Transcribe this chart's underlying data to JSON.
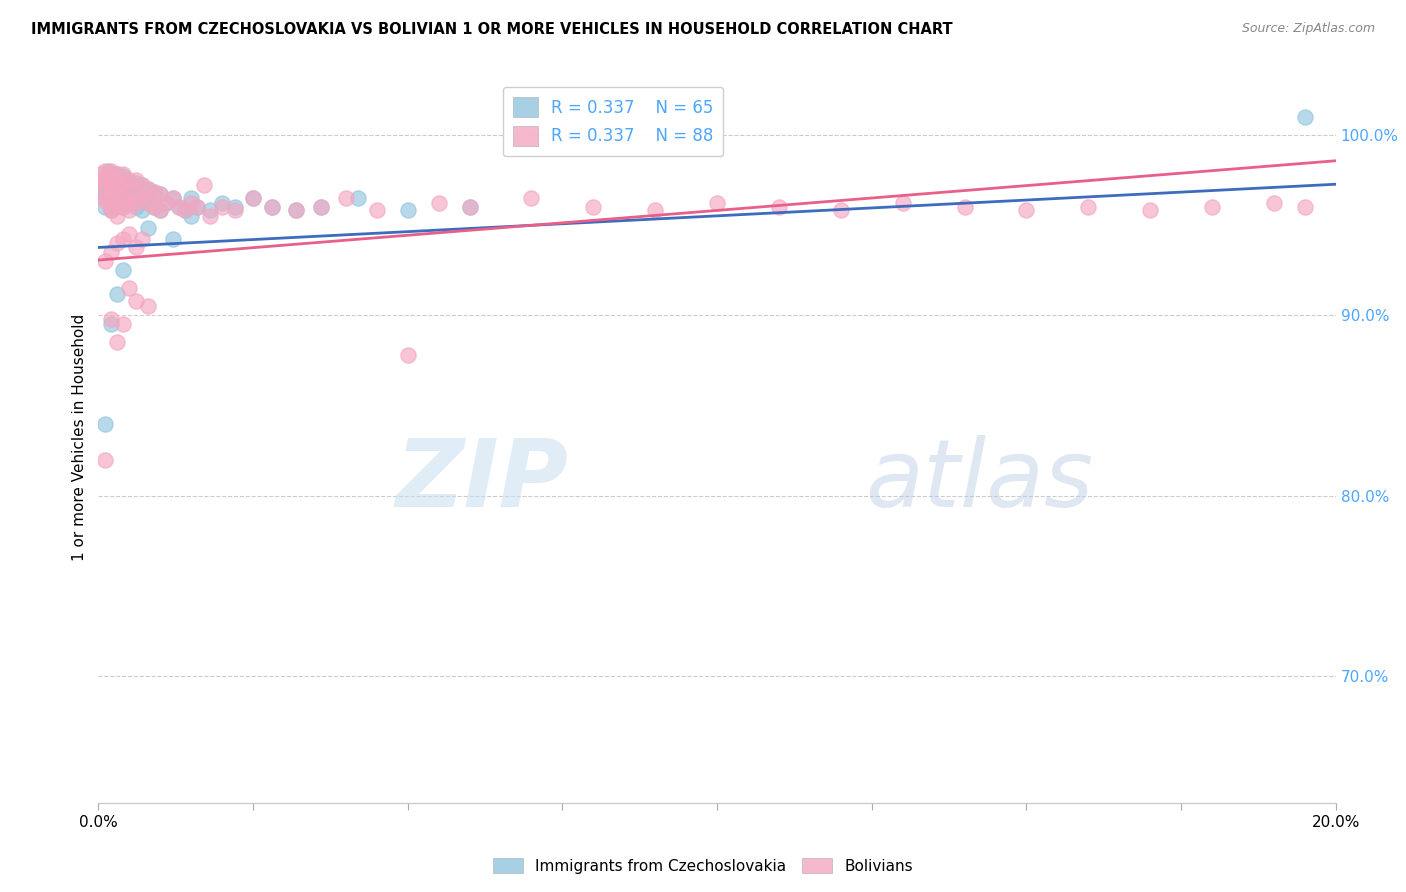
{
  "title": "IMMIGRANTS FROM CZECHOSLOVAKIA VS BOLIVIAN 1 OR MORE VEHICLES IN HOUSEHOLD CORRELATION CHART",
  "source": "Source: ZipAtlas.com",
  "ylabel": "1 or more Vehicles in Household",
  "right_yticks": [
    70.0,
    80.0,
    90.0,
    100.0
  ],
  "x_min": 0.0,
  "x_max": 0.2,
  "y_min": 0.63,
  "y_max": 1.035,
  "legend1_R": 0.337,
  "legend1_N": 65,
  "legend2_R": 0.337,
  "legend2_N": 88,
  "blue_color": "#92c5de",
  "pink_color": "#f4a6c0",
  "blue_line_color": "#3d6bbd",
  "pink_line_color": "#e8608a",
  "watermark_zip": "ZIP",
  "watermark_atlas": "atlas",
  "legend_label1": "Immigrants from Czechoslovakia",
  "legend_label2": "Bolivians",
  "blue_x": [
    0.0005,
    0.001,
    0.001,
    0.001,
    0.001,
    0.0015,
    0.0015,
    0.0015,
    0.002,
    0.002,
    0.002,
    0.002,
    0.002,
    0.0025,
    0.0025,
    0.003,
    0.003,
    0.003,
    0.003,
    0.0035,
    0.004,
    0.004,
    0.004,
    0.004,
    0.0045,
    0.005,
    0.005,
    0.005,
    0.0055,
    0.006,
    0.006,
    0.006,
    0.007,
    0.007,
    0.007,
    0.008,
    0.008,
    0.009,
    0.009,
    0.01,
    0.01,
    0.011,
    0.012,
    0.013,
    0.014,
    0.015,
    0.016,
    0.018,
    0.02,
    0.022,
    0.025,
    0.028,
    0.032,
    0.036,
    0.042,
    0.05,
    0.06,
    0.012,
    0.015,
    0.008,
    0.003,
    0.004,
    0.002,
    0.001,
    0.195
  ],
  "blue_y": [
    0.975,
    0.97,
    0.968,
    0.965,
    0.96,
    0.98,
    0.975,
    0.972,
    0.978,
    0.973,
    0.968,
    0.963,
    0.958,
    0.975,
    0.97,
    0.978,
    0.973,
    0.967,
    0.962,
    0.972,
    0.977,
    0.972,
    0.967,
    0.96,
    0.975,
    0.974,
    0.968,
    0.962,
    0.972,
    0.973,
    0.967,
    0.96,
    0.972,
    0.965,
    0.958,
    0.97,
    0.962,
    0.968,
    0.96,
    0.967,
    0.958,
    0.962,
    0.965,
    0.96,
    0.958,
    0.965,
    0.96,
    0.958,
    0.962,
    0.96,
    0.965,
    0.96,
    0.958,
    0.96,
    0.965,
    0.958,
    0.96,
    0.942,
    0.955,
    0.948,
    0.912,
    0.925,
    0.895,
    0.84,
    1.01
  ],
  "pink_x": [
    0.0003,
    0.0005,
    0.001,
    0.001,
    0.001,
    0.001,
    0.0015,
    0.0015,
    0.002,
    0.002,
    0.002,
    0.002,
    0.002,
    0.0025,
    0.003,
    0.003,
    0.003,
    0.003,
    0.0035,
    0.004,
    0.004,
    0.004,
    0.005,
    0.005,
    0.005,
    0.006,
    0.006,
    0.007,
    0.007,
    0.008,
    0.008,
    0.009,
    0.009,
    0.01,
    0.01,
    0.011,
    0.012,
    0.013,
    0.014,
    0.015,
    0.016,
    0.017,
    0.018,
    0.02,
    0.022,
    0.025,
    0.028,
    0.032,
    0.036,
    0.04,
    0.045,
    0.05,
    0.055,
    0.06,
    0.07,
    0.08,
    0.09,
    0.1,
    0.11,
    0.12,
    0.13,
    0.14,
    0.15,
    0.16,
    0.17,
    0.18,
    0.19,
    0.195,
    0.001,
    0.002,
    0.003,
    0.004,
    0.005,
    0.006,
    0.003,
    0.004,
    0.002,
    0.005,
    0.001,
    0.006,
    0.007,
    0.008,
    0.004,
    0.003,
    0.005,
    0.006,
    0.002,
    0.001
  ],
  "pink_y": [
    0.978,
    0.975,
    0.98,
    0.975,
    0.97,
    0.965,
    0.978,
    0.972,
    0.98,
    0.975,
    0.97,
    0.965,
    0.96,
    0.975,
    0.978,
    0.973,
    0.967,
    0.962,
    0.972,
    0.978,
    0.972,
    0.965,
    0.975,
    0.968,
    0.962,
    0.975,
    0.967,
    0.972,
    0.965,
    0.97,
    0.962,
    0.968,
    0.96,
    0.967,
    0.958,
    0.962,
    0.965,
    0.96,
    0.958,
    0.962,
    0.96,
    0.972,
    0.955,
    0.96,
    0.958,
    0.965,
    0.96,
    0.958,
    0.96,
    0.965,
    0.958,
    0.878,
    0.962,
    0.96,
    0.965,
    0.96,
    0.958,
    0.962,
    0.96,
    0.958,
    0.962,
    0.96,
    0.958,
    0.96,
    0.958,
    0.96,
    0.962,
    0.96,
    0.963,
    0.958,
    0.955,
    0.96,
    0.958,
    0.962,
    0.94,
    0.942,
    0.935,
    0.945,
    0.93,
    0.938,
    0.942,
    0.905,
    0.895,
    0.885,
    0.915,
    0.908,
    0.898,
    0.82
  ],
  "blue_regression": [
    0.9375,
    0.9725
  ],
  "pink_regression": [
    0.9305,
    0.9855
  ]
}
